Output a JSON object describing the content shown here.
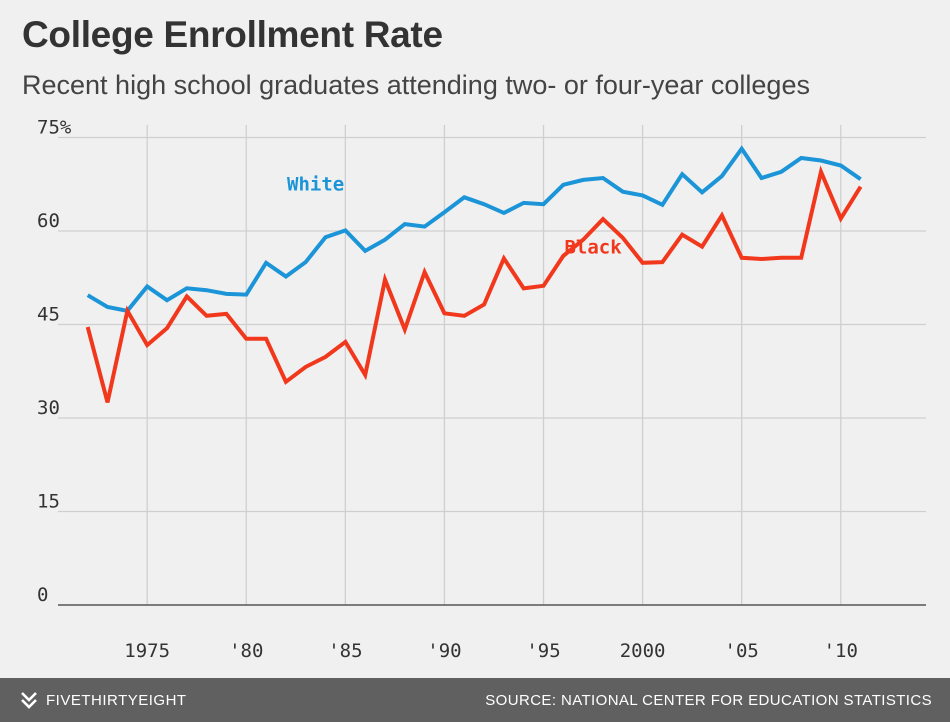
{
  "title": "College Enrollment Rate",
  "subtitle": "Recent high school graduates attending two- or four-year colleges",
  "footer": {
    "brand": "FIVETHIRTYEIGHT",
    "brand_icon": "fivethirtyeight-logo-icon",
    "source": "SOURCE: NATIONAL CENTER FOR EDUCATION STATISTICS"
  },
  "colors": {
    "white_series": "#1c95d8",
    "black_series": "#f2381c",
    "background": "#f0f0f0",
    "footer": "#606060"
  },
  "chart_data": {
    "type": "line",
    "title": "College Enrollment Rate",
    "subtitle": "Recent high school graduates attending two- or four-year colleges",
    "xlabel": "",
    "ylabel": "",
    "xlim": [
      1970.5,
      2014.3
    ],
    "ylim": [
      0,
      77
    ],
    "grid": true,
    "x_ticks": [
      {
        "value": 1975,
        "label": "1975"
      },
      {
        "value": 1980,
        "label": "'80"
      },
      {
        "value": 1985,
        "label": "'85"
      },
      {
        "value": 1990,
        "label": "'90"
      },
      {
        "value": 1995,
        "label": "'95"
      },
      {
        "value": 2000,
        "label": "2000"
      },
      {
        "value": 2005,
        "label": "'05"
      },
      {
        "value": 2010,
        "label": "'10"
      }
    ],
    "y_ticks": [
      {
        "value": 0,
        "label": "0"
      },
      {
        "value": 15,
        "label": "15"
      },
      {
        "value": 30,
        "label": "30"
      },
      {
        "value": 45,
        "label": "45"
      },
      {
        "value": 60,
        "label": "60"
      },
      {
        "value": 75,
        "label": "75%"
      }
    ],
    "x": [
      1972,
      1973,
      1974,
      1975,
      1976,
      1977,
      1978,
      1979,
      1980,
      1981,
      1982,
      1983,
      1984,
      1985,
      1986,
      1987,
      1988,
      1989,
      1990,
      1991,
      1992,
      1993,
      1994,
      1995,
      1996,
      1997,
      1998,
      1999,
      2000,
      2001,
      2002,
      2003,
      2004,
      2005,
      2006,
      2007,
      2008,
      2009,
      2010,
      2011
    ],
    "series": [
      {
        "name": "White",
        "color": "#1c95d8",
        "label_position": "above",
        "values": [
          49.7,
          47.8,
          47.2,
          51.1,
          48.9,
          50.8,
          50.5,
          49.9,
          49.8,
          54.9,
          52.7,
          55.0,
          59.0,
          60.1,
          56.8,
          58.6,
          61.1,
          60.7,
          63.0,
          65.4,
          64.3,
          62.9,
          64.5,
          64.3,
          67.4,
          68.2,
          68.5,
          66.3,
          65.7,
          64.2,
          69.1,
          66.2,
          68.8,
          73.2,
          68.5,
          69.5,
          71.7,
          71.3,
          70.5,
          68.3
        ]
      },
      {
        "name": "Black",
        "color": "#f2381c",
        "label_position": "below",
        "values": [
          44.6,
          32.5,
          47.2,
          41.7,
          44.4,
          49.5,
          46.4,
          46.7,
          42.7,
          42.7,
          35.8,
          38.2,
          39.8,
          42.2,
          36.9,
          52.2,
          44.2,
          53.4,
          46.8,
          46.4,
          48.2,
          55.6,
          50.8,
          51.2,
          56.0,
          58.6,
          61.9,
          58.9,
          54.9,
          55.0,
          59.4,
          57.5,
          62.5,
          55.7,
          55.5,
          55.7,
          55.7,
          69.5,
          62.0,
          67.1
        ]
      }
    ]
  }
}
